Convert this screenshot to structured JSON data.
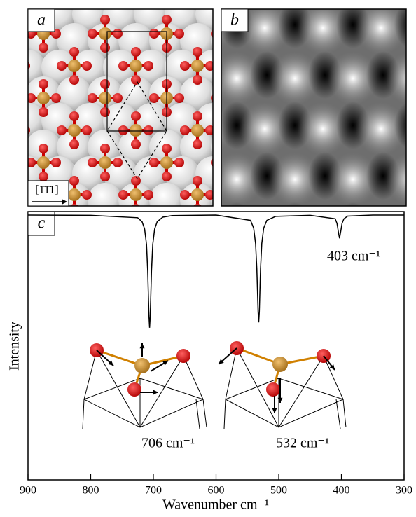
{
  "panel_labels": [
    "a",
    "b"
  ],
  "direction": "[1̄1̄1]",
  "chart_data": {
    "type": "line",
    "panel_label": "c",
    "xlabel": "Wavenumber cm⁻¹",
    "ylabel": "Intensity",
    "annotations": [
      "706 cm⁻¹",
      "532 cm⁻¹",
      "403 cm⁻¹"
    ],
    "x": [
      900,
      800,
      725,
      718,
      714,
      711,
      709,
      707,
      706,
      705,
      703,
      701,
      698,
      694,
      685,
      670,
      600,
      545,
      540,
      537,
      535,
      533,
      532,
      531,
      529,
      527,
      524,
      519,
      505,
      450,
      410,
      407,
      405,
      403,
      401,
      399,
      396,
      390,
      350,
      300
    ],
    "values": [
      0.987,
      0.986,
      0.977,
      0.962,
      0.935,
      0.877,
      0.777,
      0.609,
      0.567,
      0.609,
      0.777,
      0.877,
      0.935,
      0.962,
      0.979,
      0.985,
      0.987,
      0.967,
      0.938,
      0.881,
      0.787,
      0.627,
      0.587,
      0.627,
      0.787,
      0.881,
      0.938,
      0.967,
      0.982,
      0.986,
      0.973,
      0.956,
      0.927,
      0.9,
      0.927,
      0.956,
      0.973,
      0.983,
      0.987,
      0.987
    ],
    "color": "#000000",
    "xlim": [
      900,
      300
    ],
    "ylim": [
      0,
      1
    ],
    "xticks": [
      900,
      800,
      700,
      600,
      500,
      400,
      300
    ]
  }
}
